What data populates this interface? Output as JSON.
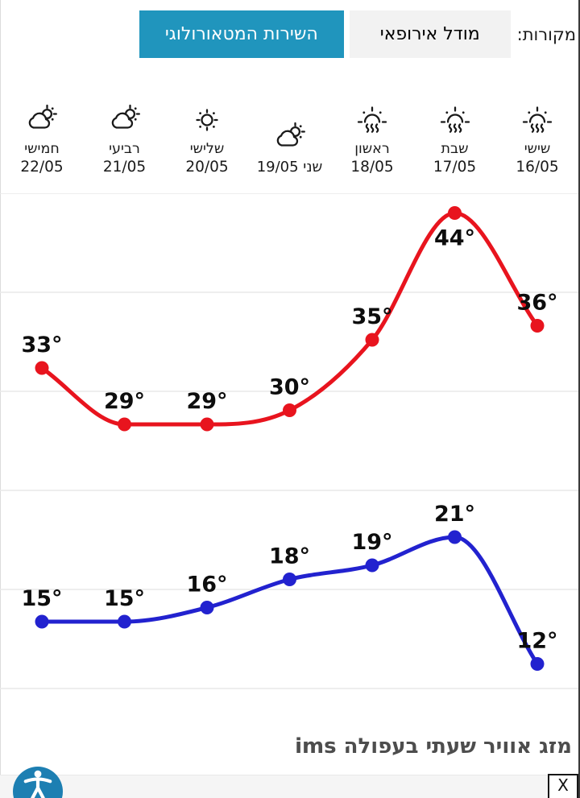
{
  "header": {
    "sources_label": "מקורות:",
    "tabs": [
      {
        "label": "מודל אירופאי",
        "selected": false
      },
      {
        "label": "השירות המטאורולוגי",
        "selected": true
      }
    ]
  },
  "days": [
    {
      "name": "שישי",
      "date": "16/05",
      "icon": "heat-icon",
      "inline": false
    },
    {
      "name": "שבת",
      "date": "17/05",
      "icon": "heat-icon",
      "inline": false
    },
    {
      "name": "ראשון",
      "date": "18/05",
      "icon": "heat-icon",
      "inline": false
    },
    {
      "name": "שני",
      "date": "19/05",
      "icon": "partly-cloudy-icon",
      "inline": true
    },
    {
      "name": "שלישי",
      "date": "20/05",
      "icon": "sunny-icon",
      "inline": false
    },
    {
      "name": "רביעי",
      "date": "21/05",
      "icon": "partly-cloudy-icon",
      "inline": false
    },
    {
      "name": "חמישי",
      "date": "22/05",
      "icon": "partly-cloudy-icon",
      "inline": false
    }
  ],
  "chart_data": {
    "type": "line",
    "rtl": true,
    "categories": [
      "16/05",
      "17/05",
      "18/05",
      "19/05",
      "20/05",
      "21/05",
      "22/05"
    ],
    "series": [
      {
        "name": "max",
        "color": "#e8141e",
        "values": [
          36,
          44,
          35,
          30,
          29,
          29,
          33
        ],
        "label_positions": [
          "above",
          "below",
          "above",
          "above",
          "above",
          "above",
          "above"
        ]
      },
      {
        "name": "min",
        "color": "#2222cf",
        "values": [
          12,
          21,
          19,
          18,
          16,
          15,
          15
        ],
        "label_positions": [
          "above",
          "above",
          "above",
          "above",
          "above",
          "above",
          "above"
        ]
      }
    ],
    "unit": "°",
    "ylim": [
      10,
      46
    ],
    "grid": true,
    "legend": "none"
  },
  "footer": {
    "title": "מזג אוויר שעתי בעפולה ims",
    "close_label": "X"
  },
  "colors": {
    "accent_teal": "#2095bd",
    "max_line": "#e8141e",
    "min_line": "#2222cf",
    "accessibility_blue": "#1d7fb2"
  }
}
